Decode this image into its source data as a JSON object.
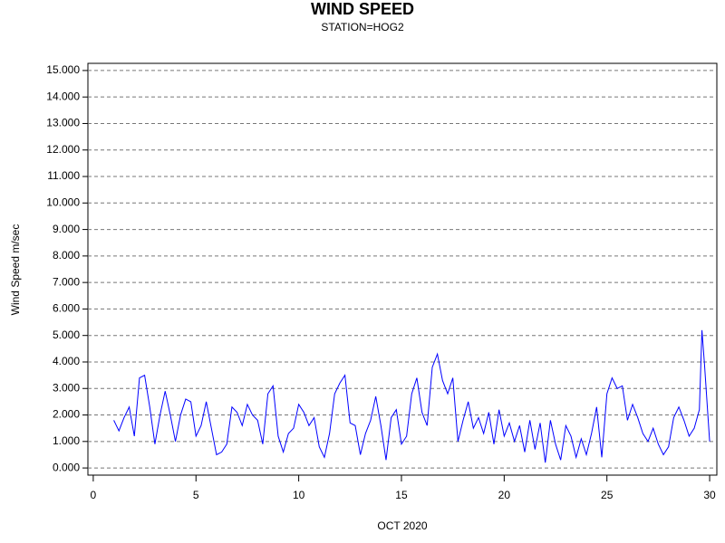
{
  "chart_data": {
    "type": "line",
    "title": "WIND SPEED",
    "subtitle": "STATION=HOG2",
    "x_label": "OCT 2020",
    "y_label": "Wind Speed m/sec",
    "xlim": [
      -0.26,
      30.35
    ],
    "xticks": [
      0,
      5,
      10,
      15,
      20,
      25,
      30
    ],
    "ylim": [
      -0.27,
      15.27
    ],
    "yticks": [
      {
        "value": 0,
        "label": "0.000"
      },
      {
        "value": 1,
        "label": "1.000"
      },
      {
        "value": 2,
        "label": "2.000"
      },
      {
        "value": 3,
        "label": "3.000"
      },
      {
        "value": 4,
        "label": "4.000"
      },
      {
        "value": 5,
        "label": "5.000"
      },
      {
        "value": 6,
        "label": "6.000"
      },
      {
        "value": 7,
        "label": "7.000"
      },
      {
        "value": 8,
        "label": "8.000"
      },
      {
        "value": 9,
        "label": "9.000"
      },
      {
        "value": 10,
        "label": "10.000"
      },
      {
        "value": 11,
        "label": "11.000"
      },
      {
        "value": 12,
        "label": "12.000"
      },
      {
        "value": 13,
        "label": "13.000"
      },
      {
        "value": 14,
        "label": "14.000"
      },
      {
        "value": 15,
        "label": "15.000"
      }
    ],
    "grid": true,
    "x": [
      1.0,
      1.25,
      1.5,
      1.75,
      2.0,
      2.25,
      2.5,
      2.75,
      3.0,
      3.25,
      3.5,
      3.75,
      4.0,
      4.25,
      4.5,
      4.75,
      5.0,
      5.25,
      5.5,
      5.75,
      6.0,
      6.25,
      6.5,
      6.75,
      7.0,
      7.25,
      7.5,
      7.75,
      8.0,
      8.25,
      8.5,
      8.75,
      9.0,
      9.25,
      9.5,
      9.75,
      10.0,
      10.25,
      10.5,
      10.75,
      11.0,
      11.25,
      11.5,
      11.75,
      12.0,
      12.25,
      12.5,
      12.75,
      13.0,
      13.25,
      13.5,
      13.75,
      14.0,
      14.25,
      14.5,
      14.75,
      15.0,
      15.25,
      15.5,
      15.75,
      16.0,
      16.25,
      16.5,
      16.75,
      17.0,
      17.25,
      17.5,
      17.75,
      18.0,
      18.25,
      18.5,
      18.75,
      19.0,
      19.25,
      19.5,
      19.75,
      20.0,
      20.25,
      20.5,
      20.75,
      21.0,
      21.25,
      21.5,
      21.75,
      22.0,
      22.25,
      22.5,
      22.75,
      23.0,
      23.25,
      23.5,
      23.75,
      24.0,
      24.25,
      24.5,
      24.75,
      25.0,
      25.25,
      25.5,
      25.75,
      26.0,
      26.25,
      26.5,
      26.75,
      27.0,
      27.25,
      27.5,
      27.75,
      28.0,
      28.25,
      28.5,
      28.75,
      29.0,
      29.25,
      29.5,
      29.625,
      29.75,
      30.0
    ],
    "series": [
      {
        "name": "Wind Speed",
        "color": "#0000ff",
        "values": [
          1.8,
          1.4,
          1.9,
          2.3,
          1.2,
          3.4,
          3.5,
          2.3,
          0.9,
          2.0,
          2.9,
          2.0,
          1.0,
          2.0,
          2.6,
          2.5,
          1.2,
          1.6,
          2.5,
          1.5,
          0.5,
          0.6,
          0.9,
          2.3,
          2.1,
          1.6,
          2.4,
          2.0,
          1.8,
          0.9,
          2.8,
          3.1,
          1.2,
          0.6,
          1.3,
          1.5,
          2.4,
          2.1,
          1.6,
          1.9,
          0.8,
          0.4,
          1.3,
          2.8,
          3.2,
          3.5,
          1.7,
          1.6,
          0.5,
          1.3,
          1.8,
          2.7,
          1.6,
          0.3,
          1.9,
          2.2,
          0.9,
          1.2,
          2.8,
          3.4,
          2.1,
          1.6,
          3.8,
          4.3,
          3.3,
          2.8,
          3.4,
          1.0,
          1.8,
          2.5,
          1.5,
          1.9,
          1.3,
          2.1,
          0.9,
          2.2,
          1.2,
          1.7,
          1.0,
          1.6,
          0.6,
          1.8,
          0.7,
          1.7,
          0.2,
          1.8,
          0.9,
          0.3,
          1.6,
          1.2,
          0.4,
          1.1,
          0.5,
          1.3,
          2.3,
          0.4,
          2.8,
          3.4,
          3.0,
          3.1,
          1.8,
          2.4,
          1.9,
          1.3,
          1.0,
          1.5,
          0.9,
          0.5,
          0.8,
          1.9,
          2.3,
          1.8,
          1.2,
          1.5,
          2.2,
          5.2,
          3.9,
          1.0
        ]
      }
    ]
  }
}
